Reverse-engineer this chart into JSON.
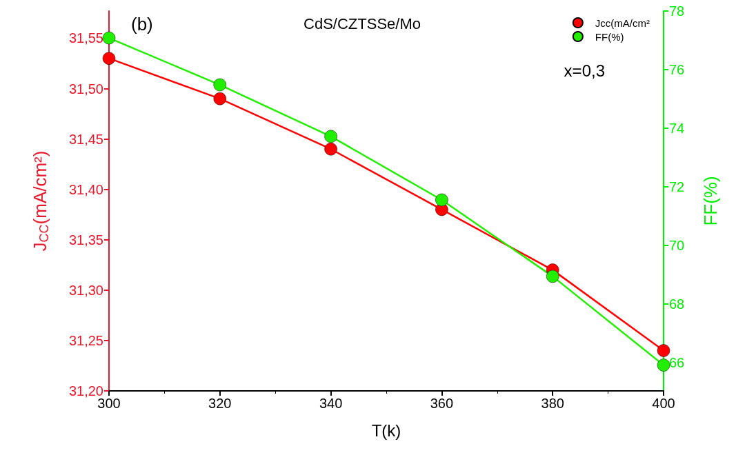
{
  "chart_data": {
    "type": "line",
    "title": "CdS/CZTSSe/Mo",
    "xlabel": "T(k)",
    "ylabel": "J$_{CC}$(mA/cm²)",
    "y2label": "FF(%)",
    "annotations": [
      "(b)",
      "x=0,3"
    ],
    "x": [
      300,
      320,
      340,
      360,
      380,
      400
    ],
    "xlim": [
      300,
      400
    ],
    "xticks": [
      300,
      320,
      340,
      360,
      380,
      400
    ],
    "ylim": [
      31.2,
      31.577
    ],
    "yticks": [
      {
        "value": 31.2,
        "label": "31,20"
      },
      {
        "value": 31.25,
        "label": "31,25"
      },
      {
        "value": 31.3,
        "label": "31,30"
      },
      {
        "value": 31.35,
        "label": "31,35"
      },
      {
        "value": 31.4,
        "label": "31,40"
      },
      {
        "value": 31.45,
        "label": "31,45"
      },
      {
        "value": 31.5,
        "label": "31,50"
      },
      {
        "value": 31.55,
        "label": "31,55"
      }
    ],
    "y2lim": [
      65.03,
      78
    ],
    "y2ticks": [
      66,
      68,
      70,
      72,
      74,
      76,
      78
    ],
    "series": [
      {
        "name": "Jcc(mA/cm²",
        "color": "#ff0000",
        "values": [
          31.53,
          31.49,
          31.44,
          31.38,
          31.32,
          31.24
        ]
      },
      {
        "name": "FF(%)",
        "color": "#22ee00",
        "axis": "y2",
        "values": [
          77.08,
          75.48,
          73.72,
          71.55,
          68.94,
          65.91
        ]
      }
    ],
    "marker": "circle",
    "line_style": "solid",
    "grid": false,
    "legend": "top right"
  }
}
